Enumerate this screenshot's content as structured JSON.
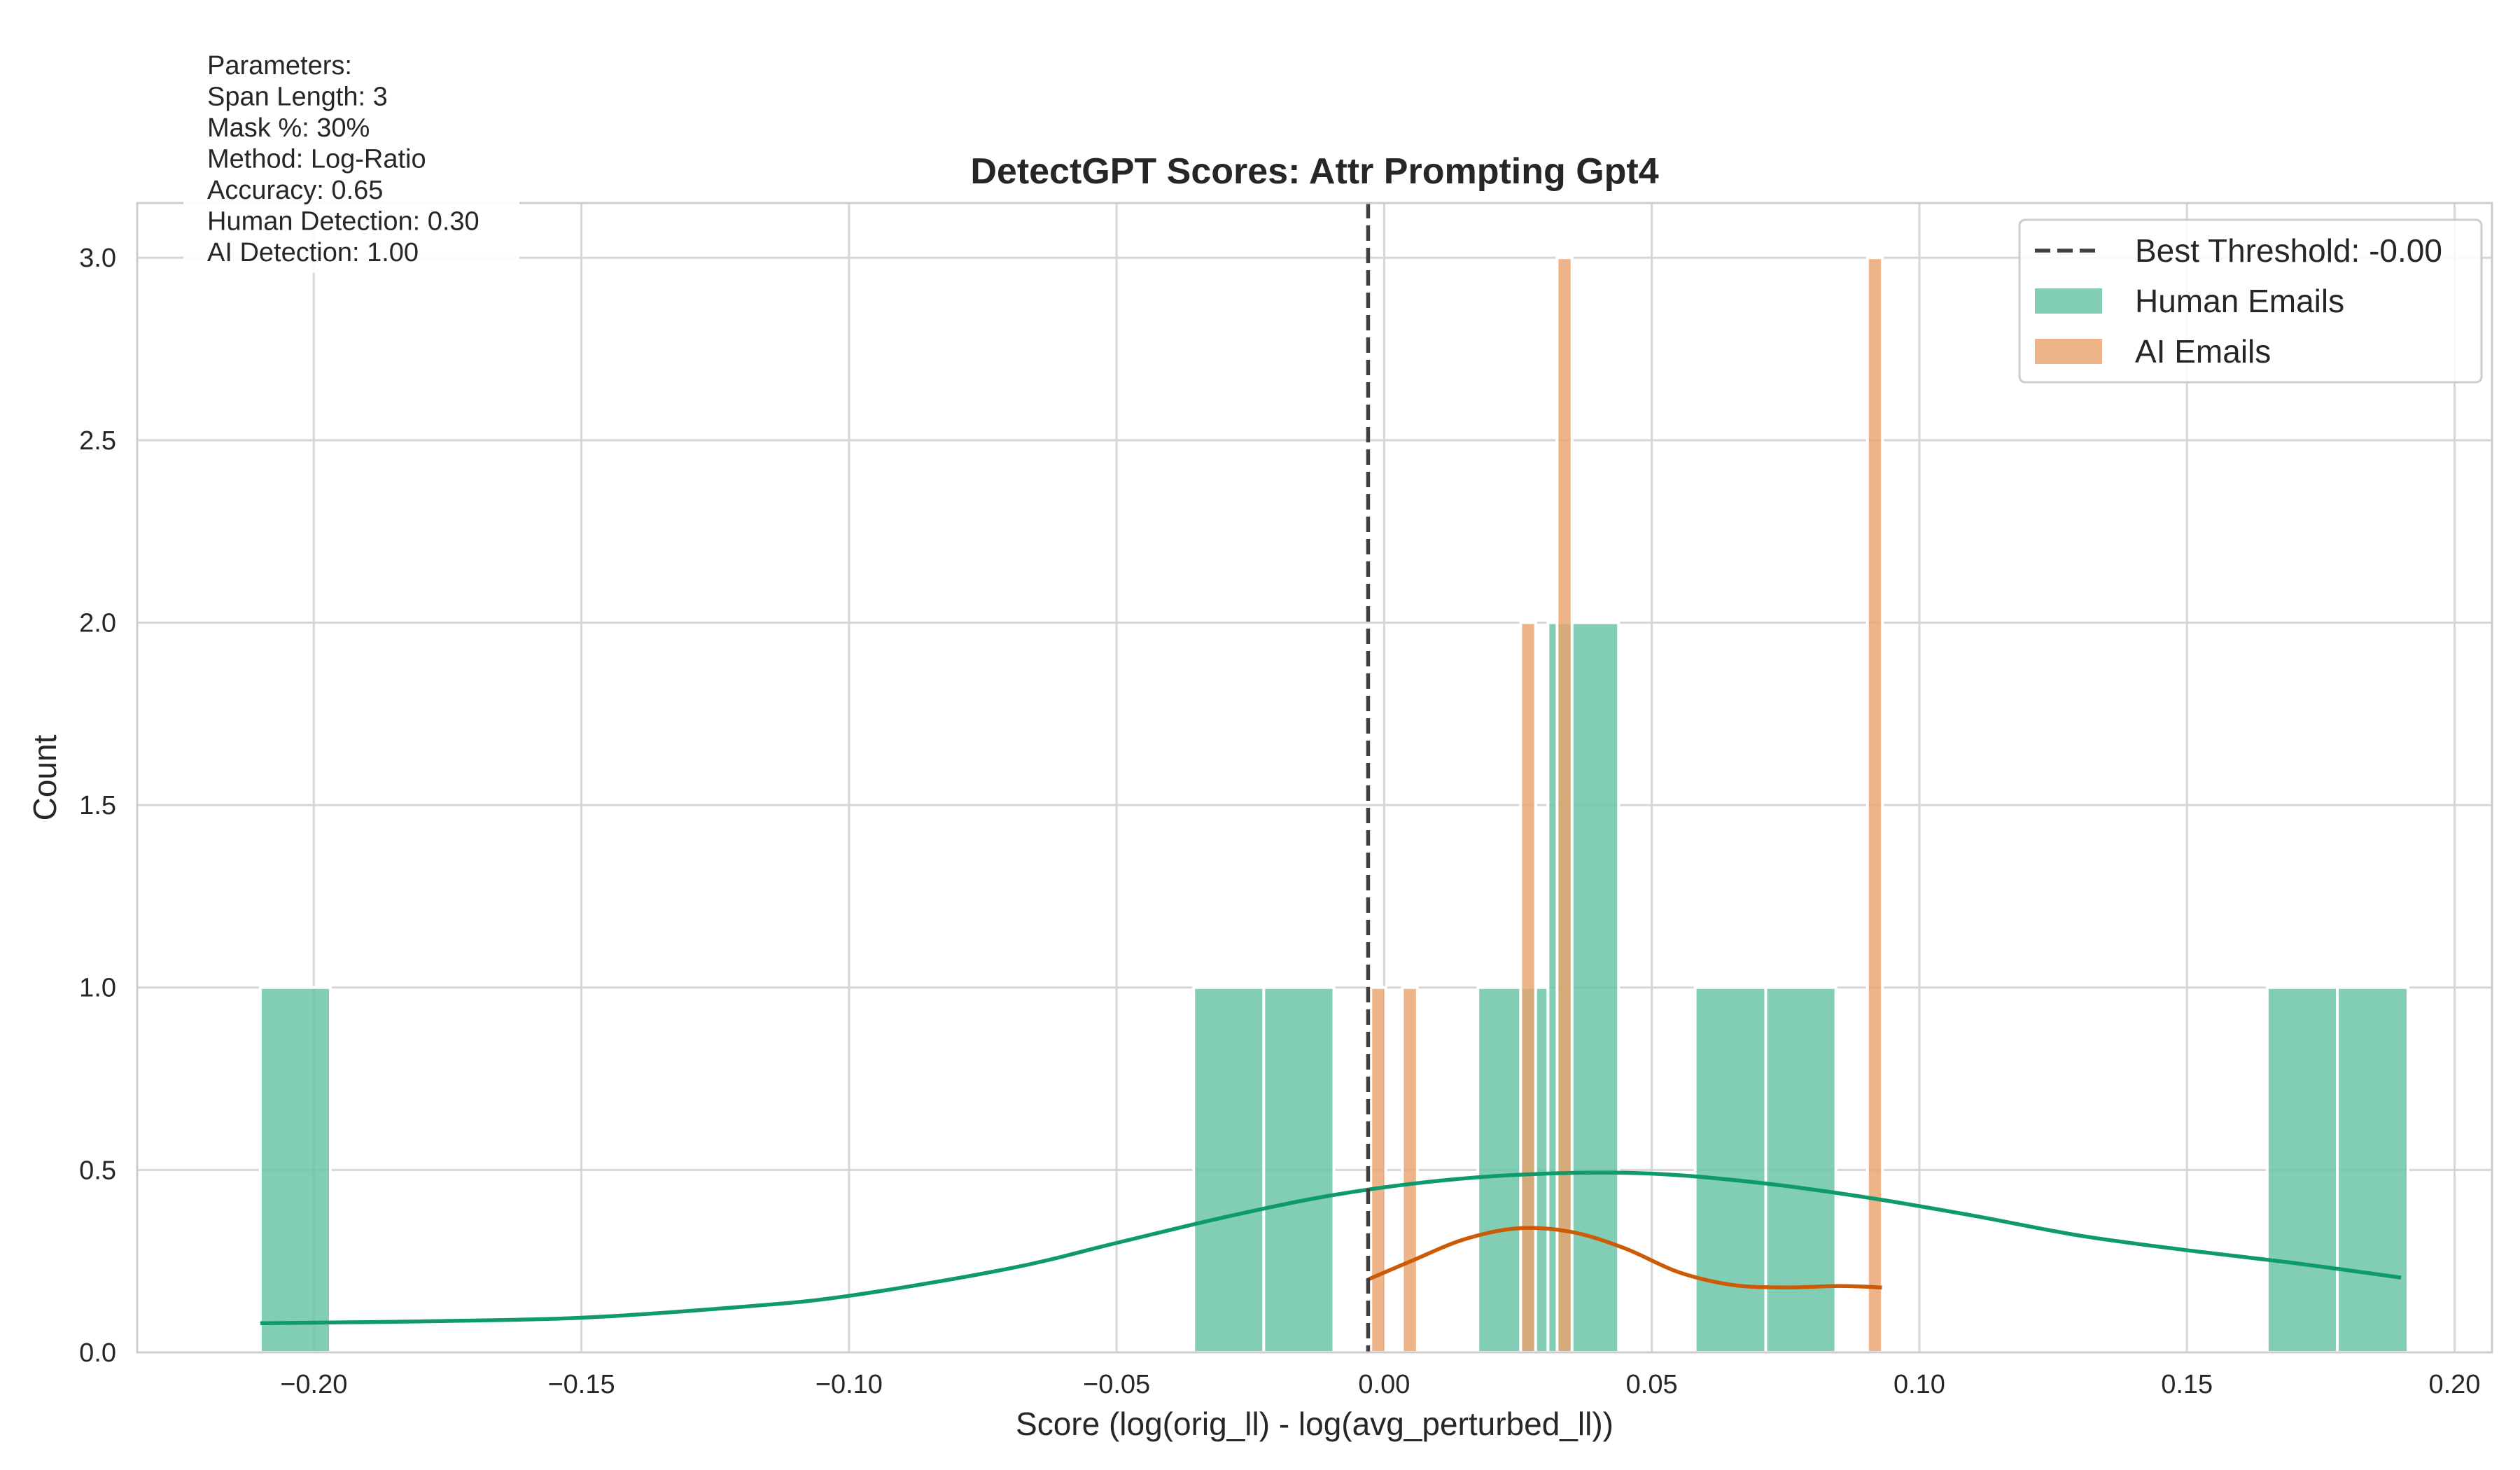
{
  "chart_data": {
    "type": "histogram",
    "title": "DetectGPT Scores: Attr Prompting Gpt4",
    "xlabel": "Score (log(orig_ll) - log(avg_perturbed_ll))",
    "ylabel": "Count",
    "xlim": [
      -0.233,
      0.207
    ],
    "ylim": [
      0,
      3.15
    ],
    "xticks": [
      -0.2,
      -0.15,
      -0.1,
      -0.05,
      0.0,
      0.05,
      0.1,
      0.15,
      0.2
    ],
    "xtick_labels": [
      "−0.20",
      "−0.15",
      "−0.10",
      "−0.05",
      "0.00",
      "0.05",
      "0.10",
      "0.15",
      "0.20"
    ],
    "yticks": [
      0,
      0.5,
      1.0,
      1.5,
      2.0,
      2.5,
      3.0
    ],
    "ytick_labels": [
      "0.0",
      "0.5",
      "1.0",
      "1.5",
      "2.0",
      "2.5",
      "3.0"
    ],
    "grid": true,
    "legend_position": "top-right",
    "threshold": {
      "value": -0.003,
      "label": "Best Threshold: -0.00",
      "color": "#404040"
    },
    "series": [
      {
        "name": "Human Emails",
        "color": "#66c2a5",
        "kde_color": "#0f9a6e",
        "bins": [
          {
            "x0": -0.21,
            "x1": -0.1969,
            "count": 1
          },
          {
            "x0": -0.0356,
            "x1": -0.0225,
            "count": 1
          },
          {
            "x0": -0.0225,
            "x1": -0.0094,
            "count": 1
          },
          {
            "x0": 0.0175,
            "x1": 0.0306,
            "count": 1
          },
          {
            "x0": 0.0306,
            "x1": 0.0438,
            "count": 2
          },
          {
            "x0": 0.0581,
            "x1": 0.0713,
            "count": 1
          },
          {
            "x0": 0.0713,
            "x1": 0.0844,
            "count": 1
          },
          {
            "x0": 0.165,
            "x1": 0.1781,
            "count": 1
          },
          {
            "x0": 0.1781,
            "x1": 0.1913,
            "count": 1
          }
        ],
        "kde": [
          [
            -0.21,
            0.08
          ],
          [
            -0.18,
            0.085
          ],
          [
            -0.15,
            0.095
          ],
          [
            -0.12,
            0.125
          ],
          [
            -0.1,
            0.155
          ],
          [
            -0.07,
            0.23
          ],
          [
            -0.05,
            0.3
          ],
          [
            -0.03,
            0.37
          ],
          [
            -0.01,
            0.43
          ],
          [
            0.01,
            0.47
          ],
          [
            0.03,
            0.49
          ],
          [
            0.05,
            0.49
          ],
          [
            0.07,
            0.465
          ],
          [
            0.09,
            0.425
          ],
          [
            0.11,
            0.375
          ],
          [
            0.13,
            0.32
          ],
          [
            0.15,
            0.28
          ],
          [
            0.17,
            0.245
          ],
          [
            0.19,
            0.205
          ]
        ]
      },
      {
        "name": "AI Emails",
        "color": "#e8a46e",
        "kde_color": "#cc5a06",
        "bins": [
          {
            "x0": -0.0025,
            "x1": 0.0003,
            "count": 1
          },
          {
            "x0": 0.0034,
            "x1": 0.0062,
            "count": 1
          },
          {
            "x0": 0.0255,
            "x1": 0.0283,
            "count": 2
          },
          {
            "x0": 0.0323,
            "x1": 0.0351,
            "count": 3
          },
          {
            "x0": 0.0903,
            "x1": 0.0931,
            "count": 3
          }
        ],
        "kde": [
          [
            -0.003,
            0.2
          ],
          [
            0.005,
            0.25
          ],
          [
            0.015,
            0.31
          ],
          [
            0.025,
            0.34
          ],
          [
            0.035,
            0.33
          ],
          [
            0.045,
            0.285
          ],
          [
            0.055,
            0.22
          ],
          [
            0.065,
            0.185
          ],
          [
            0.075,
            0.178
          ],
          [
            0.085,
            0.182
          ],
          [
            0.093,
            0.178
          ]
        ]
      }
    ],
    "annotation": {
      "lines": [
        "Parameters:",
        "Span Length: 3",
        "Mask %: 30%",
        "Method: Log-Ratio",
        "Accuracy: 0.65",
        "Human Detection: 0.30",
        "AI Detection: 1.00"
      ]
    }
  }
}
